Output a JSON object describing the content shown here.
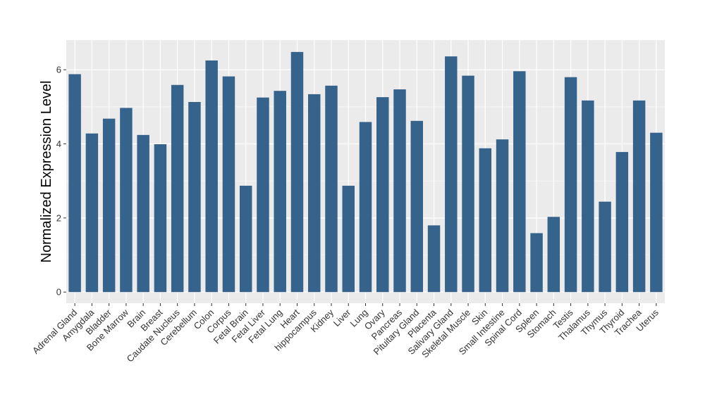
{
  "chart_data": {
    "type": "bar",
    "title": "",
    "xlabel": "",
    "ylabel": "Normalized Expression Level",
    "ylim": [
      -0.3,
      6.8
    ],
    "yticks": [
      0,
      2,
      4,
      6
    ],
    "grid": true,
    "legend": "none",
    "bar_color": "#36638C",
    "panel_color": "#EBEBEB",
    "categories": [
      "Adrenal Gland",
      "Amygdala",
      "Bladder",
      "Bone Marrow",
      "Brain",
      "Breast",
      "Caudate Nucleus",
      "Cerebellum",
      "Colon",
      "Corpus",
      "Fetal Brain",
      "Fetal Liver",
      "Fetal Lung",
      "Heart",
      "hippocampus",
      "Kidney",
      "Liver",
      "Lung",
      "Ovary",
      "Pancreas",
      "Pituitary Gland",
      "Placenta",
      "Salivary Gland",
      "Skeletal Muscle",
      "Skin",
      "Small Intestine",
      "Spinal Cord",
      "Spleen",
      "Stomach",
      "Testis",
      "Thalamus",
      "Thymus",
      "Thyroid",
      "Trachea",
      "Uterus"
    ],
    "values": [
      5.88,
      4.28,
      4.68,
      4.97,
      4.24,
      3.99,
      5.59,
      5.13,
      6.25,
      5.82,
      2.87,
      5.25,
      5.43,
      6.48,
      5.34,
      5.57,
      2.87,
      4.59,
      5.26,
      5.47,
      4.62,
      1.8,
      6.36,
      5.84,
      3.88,
      4.12,
      5.96,
      1.59,
      2.03,
      5.8,
      5.17,
      2.44,
      3.78,
      5.17,
      4.3
    ]
  }
}
